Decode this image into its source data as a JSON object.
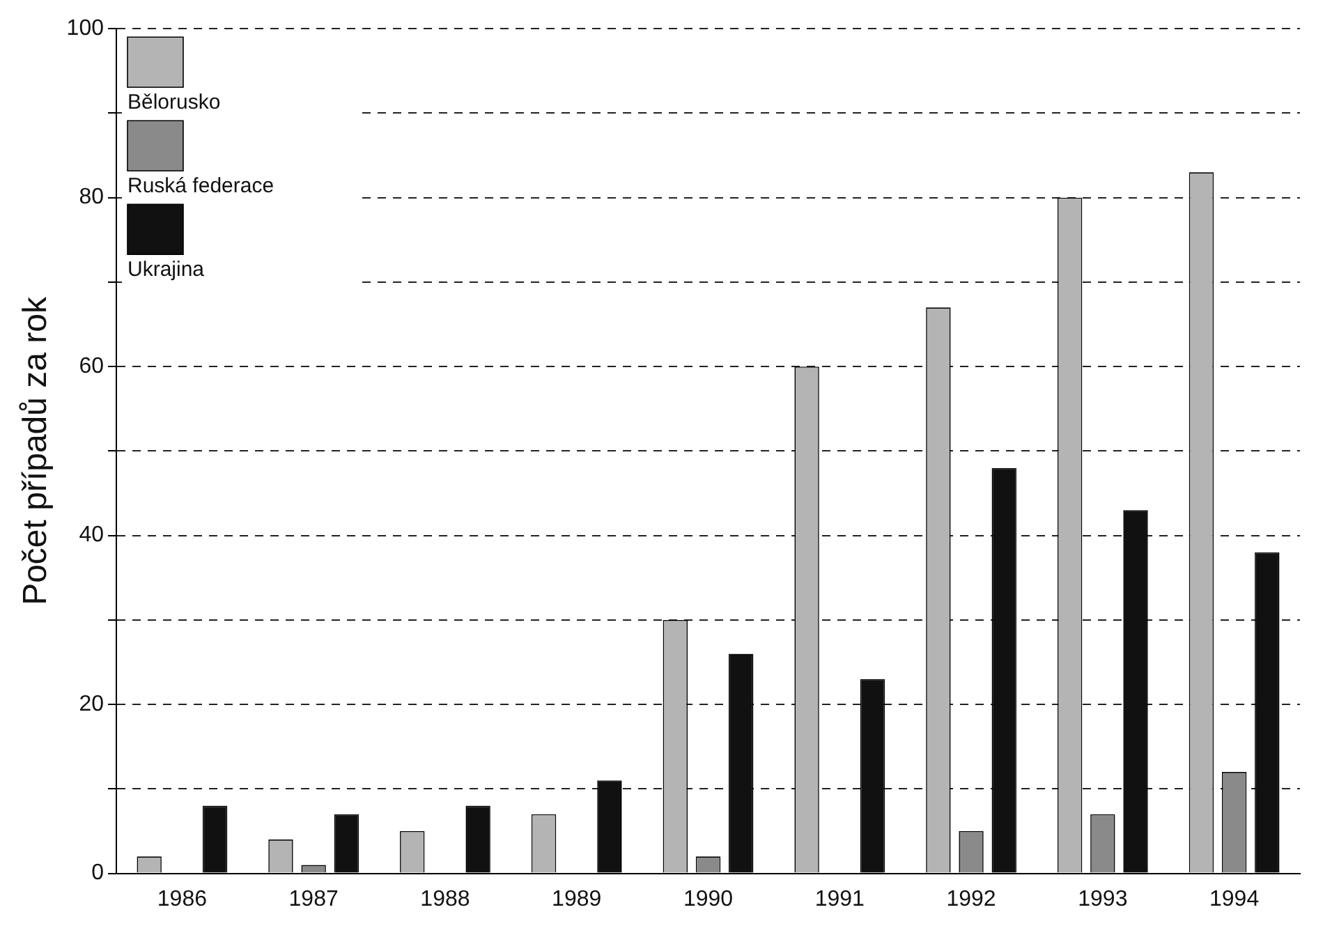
{
  "chart_data": {
    "type": "bar",
    "ylabel": "Počet případů za rok",
    "categories": [
      "1986",
      "1987",
      "1988",
      "1989",
      "1990",
      "1991",
      "1992",
      "1993",
      "1994"
    ],
    "series": [
      {
        "name": "Bělorusko",
        "color": "#b4b4b4",
        "values": [
          2,
          4,
          5,
          7,
          30,
          60,
          67,
          80,
          83
        ]
      },
      {
        "name": "Ruská federace",
        "color": "#8a8a8a",
        "values": [
          0,
          1,
          0,
          0,
          2,
          0,
          5,
          7,
          12
        ]
      },
      {
        "name": "Ukrajina",
        "color": "#111111",
        "values": [
          8,
          7,
          8,
          11,
          26,
          23,
          48,
          43,
          38
        ]
      }
    ],
    "ylim": [
      0,
      100
    ],
    "yticks": [
      0,
      {
        "value": 10,
        "label": null
      },
      20,
      {
        "value": 30,
        "label": null
      },
      40,
      {
        "value": 50,
        "label": null
      },
      60,
      {
        "value": 70,
        "label": null
      },
      80,
      {
        "value": 90,
        "label": null
      },
      100
    ],
    "grid": "y",
    "legend": "top left"
  }
}
